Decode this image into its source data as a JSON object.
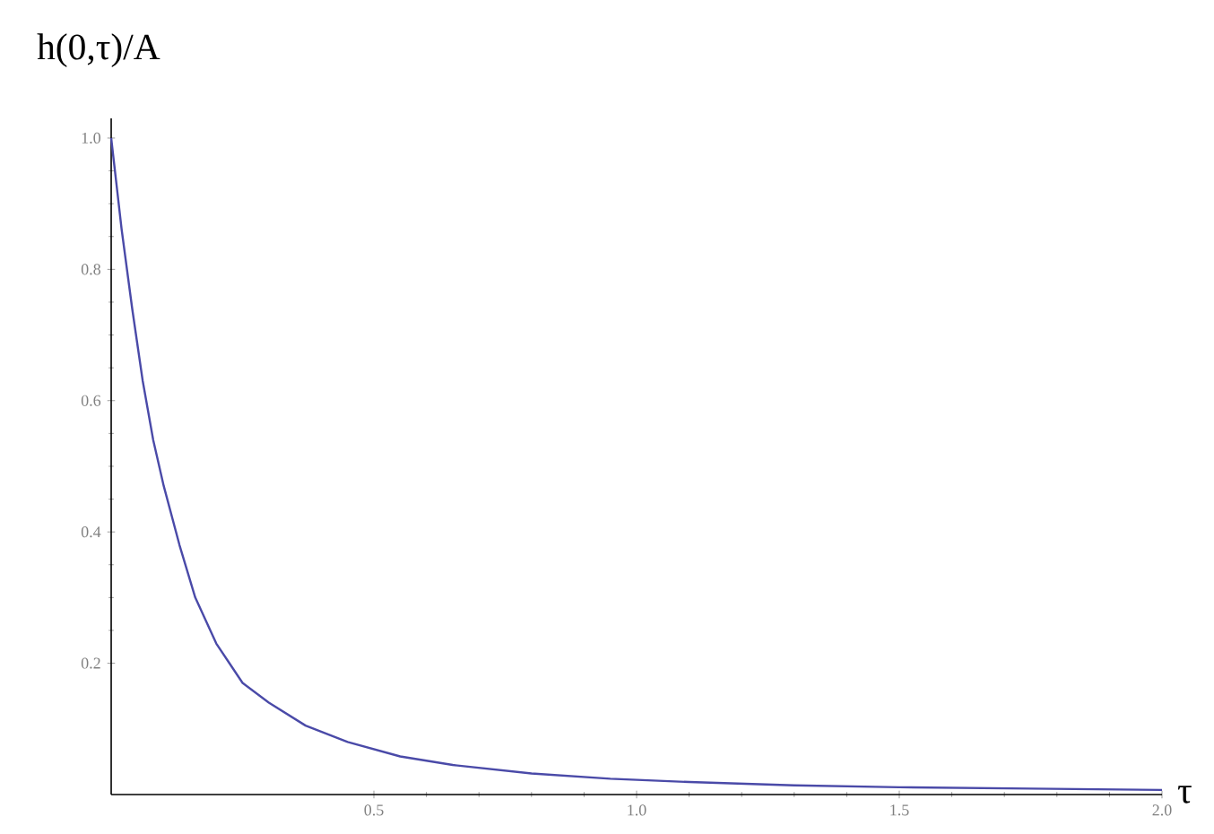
{
  "chart_data": {
    "type": "line",
    "ylabel": "h(0,τ)/A",
    "xlabel": "τ",
    "x": [
      0,
      0.02,
      0.04,
      0.06,
      0.08,
      0.1,
      0.13,
      0.16,
      0.2,
      0.25,
      0.3,
      0.37,
      0.45,
      0.55,
      0.65,
      0.8,
      0.95,
      1.1,
      1.3,
      1.5,
      1.75,
      2.0
    ],
    "series": [
      {
        "color": "#4a4aa8",
        "values": [
          1.0,
          0.86,
          0.74,
          0.63,
          0.54,
          0.47,
          0.38,
          0.3,
          0.23,
          0.17,
          0.14,
          0.105,
          0.08,
          0.058,
          0.045,
          0.032,
          0.024,
          0.019,
          0.014,
          0.011,
          0.009,
          0.007
        ]
      }
    ],
    "xlim": [
      0,
      2.0
    ],
    "ylim": [
      0,
      1.03
    ],
    "xticks": [
      {
        "value": 0.5,
        "label": "0.5"
      },
      {
        "value": 1.0,
        "label": "1.0"
      },
      {
        "value": 1.5,
        "label": "1.5"
      },
      {
        "value": 2.0,
        "label": "2.0"
      }
    ],
    "yticks": [
      {
        "value": 0.2,
        "label": "0.2"
      },
      {
        "value": 0.4,
        "label": "0.4"
      },
      {
        "value": 0.6,
        "label": "0.6"
      },
      {
        "value": 0.8,
        "label": "0.8"
      },
      {
        "value": 1.0,
        "label": "1.0"
      }
    ],
    "marker": "none",
    "line_style": "solid"
  }
}
